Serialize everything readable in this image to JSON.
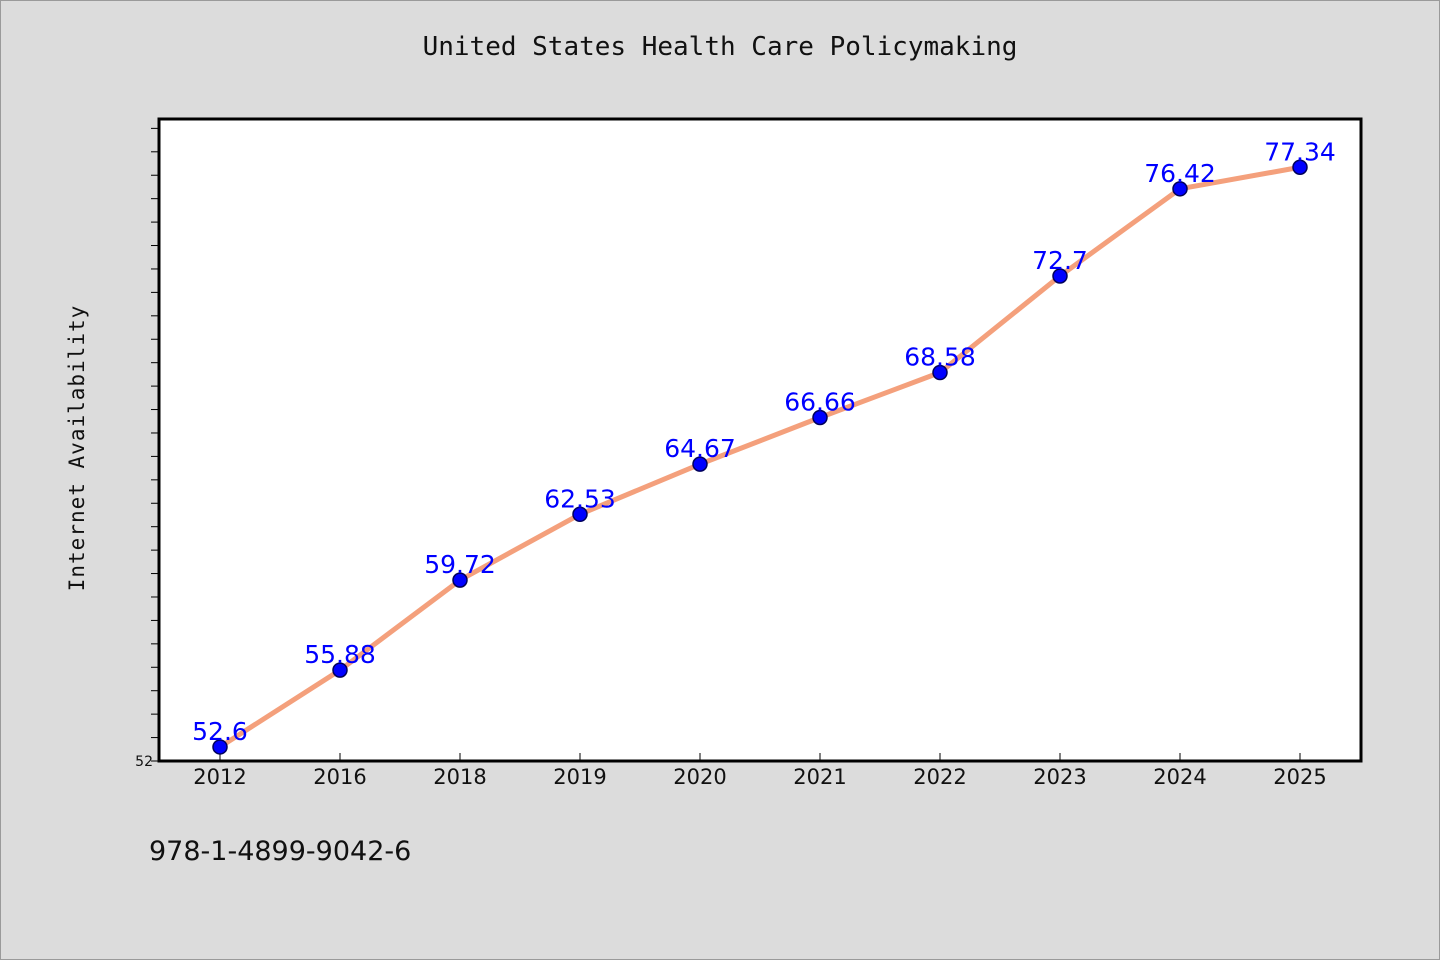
{
  "chart_data": {
    "type": "line",
    "title": "United States Health Care Policymaking",
    "xlabel": "",
    "ylabel": "Internet Availability",
    "categories": [
      "2012",
      "2016",
      "2018",
      "2019",
      "2020",
      "2021",
      "2022",
      "2023",
      "2024",
      "2025"
    ],
    "series": [
      {
        "values": [
          52.6,
          55.88,
          59.72,
          62.53,
          64.67,
          66.66,
          68.58,
          72.7,
          76.42,
          77.34
        ],
        "labels": [
          "52.6",
          "55.88",
          "59.72",
          "62.53",
          "64.67",
          "66.66",
          "68.58",
          "72.7",
          "76.42",
          "77.34"
        ]
      }
    ],
    "ylim": [
      52,
      79.4
    ],
    "y_tick_labels": [
      "52"
    ],
    "grid": false,
    "legend": "none",
    "colors": {
      "line": "#f4a07c",
      "marker": "#0000ff",
      "label": "#0000ff",
      "background": "#dcdcdc",
      "plot_area": "#ffffff"
    }
  },
  "footer": {
    "code": "978-1-4899-9042-6"
  }
}
